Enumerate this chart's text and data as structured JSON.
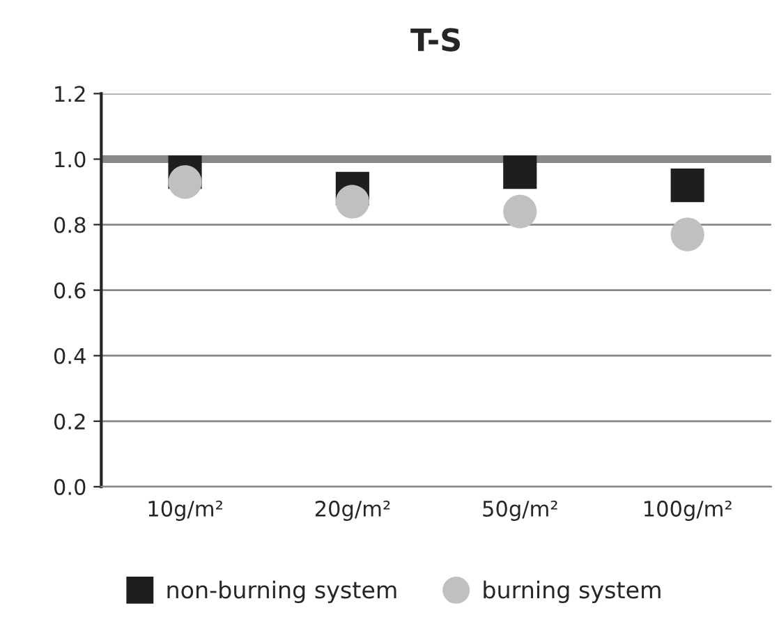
{
  "chart_data": {
    "type": "scatter",
    "title": "T-S",
    "categories": [
      "10g/m²",
      "20g/m²",
      "50g/m²",
      "100g/m²"
    ],
    "series": [
      {
        "name": "non-burning system",
        "color": "#1e1e1e",
        "marker": "square",
        "values": [
          0.96,
          0.91,
          0.96,
          0.92
        ]
      },
      {
        "name": "burning system",
        "color": "#c0c0c0",
        "marker": "circle",
        "values": [
          0.93,
          0.87,
          0.84,
          0.77
        ]
      }
    ],
    "ylim": [
      0,
      1.2
    ],
    "yticks": [
      {
        "value": 0,
        "label": "0.0"
      },
      0.2,
      0.4,
      0.6,
      0.8,
      {
        "value": 1,
        "label": "1.0"
      },
      1.2
    ],
    "ref_lines": [
      {
        "axis": "y",
        "value": 1.0,
        "color": "#888888"
      }
    ],
    "grid": "y",
    "legend": "bottom"
  }
}
